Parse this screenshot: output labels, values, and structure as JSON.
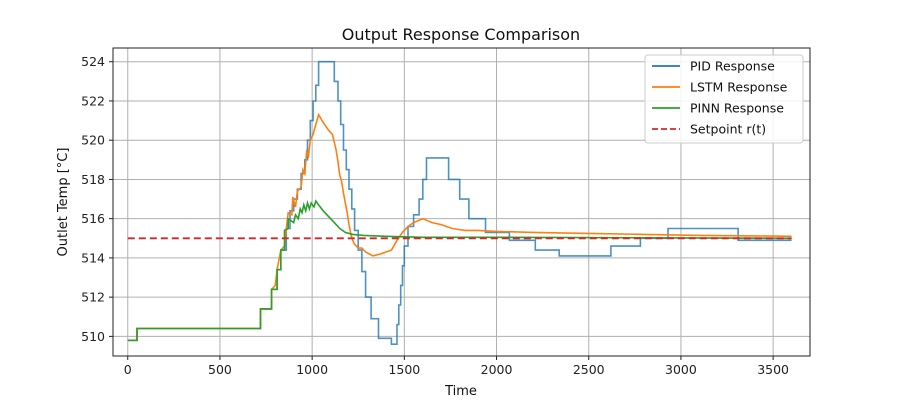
{
  "chart_data": {
    "type": "line",
    "title": "Output Response Comparison",
    "xlabel": "Time",
    "ylabel": "Outlet Temp [°C]",
    "xlim": [
      -80,
      3700
    ],
    "ylim": [
      509.0,
      524.7
    ],
    "xticks": [
      0,
      500,
      1000,
      1500,
      2000,
      2500,
      3000,
      3500
    ],
    "yticks": [
      510,
      512,
      514,
      516,
      518,
      520,
      522,
      524
    ],
    "grid": true,
    "legend_position": "top-right",
    "series": [
      {
        "name": "PID Response",
        "color": "#1f77b4",
        "step": true,
        "points": [
          [
            0,
            509.8
          ],
          [
            50,
            510.4
          ],
          [
            720,
            511.4
          ],
          [
            780,
            512.4
          ],
          [
            810,
            513.4
          ],
          [
            830,
            514.4
          ],
          [
            860,
            515.5
          ],
          [
            880,
            516.4
          ],
          [
            900,
            517.0
          ],
          [
            920,
            517.5
          ],
          [
            940,
            518.3
          ],
          [
            960,
            519.0
          ],
          [
            975,
            520.0
          ],
          [
            990,
            521.0
          ],
          [
            1005,
            522.0
          ],
          [
            1020,
            522.8
          ],
          [
            1035,
            524.0
          ],
          [
            1120,
            523.0
          ],
          [
            1140,
            522.0
          ],
          [
            1155,
            520.8
          ],
          [
            1170,
            519.5
          ],
          [
            1185,
            518.5
          ],
          [
            1200,
            517.5
          ],
          [
            1215,
            516.5
          ],
          [
            1230,
            515.4
          ],
          [
            1250,
            514.4
          ],
          [
            1270,
            513.3
          ],
          [
            1290,
            512.0
          ],
          [
            1320,
            510.9
          ],
          [
            1360,
            509.9
          ],
          [
            1430,
            509.6
          ],
          [
            1460,
            510.6
          ],
          [
            1470,
            511.6
          ],
          [
            1480,
            512.6
          ],
          [
            1490,
            513.6
          ],
          [
            1500,
            514.6
          ],
          [
            1520,
            515.6
          ],
          [
            1550,
            516.2
          ],
          [
            1580,
            517.0
          ],
          [
            1600,
            518.0
          ],
          [
            1620,
            519.1
          ],
          [
            1740,
            518.0
          ],
          [
            1800,
            517.0
          ],
          [
            1850,
            516.0
          ],
          [
            1940,
            515.3
          ],
          [
            2070,
            514.9
          ],
          [
            2210,
            514.4
          ],
          [
            2340,
            514.1
          ],
          [
            2620,
            514.6
          ],
          [
            2780,
            515.0
          ],
          [
            2930,
            515.5
          ],
          [
            3310,
            514.9
          ],
          [
            3600,
            514.9
          ]
        ]
      },
      {
        "name": "LSTM Response",
        "color": "#ff7f0e",
        "step": false,
        "points": [
          [
            0,
            509.8
          ],
          [
            50,
            509.8
          ],
          [
            50,
            510.4
          ],
          [
            720,
            510.4
          ],
          [
            720,
            511.4
          ],
          [
            780,
            511.4
          ],
          [
            780,
            512.4
          ],
          [
            800,
            512.6
          ],
          [
            810,
            513.4
          ],
          [
            830,
            514.4
          ],
          [
            850,
            514.6
          ],
          [
            860,
            515.5
          ],
          [
            870,
            516.3
          ],
          [
            890,
            516.2
          ],
          [
            895,
            517.1
          ],
          [
            910,
            516.6
          ],
          [
            920,
            517.4
          ],
          [
            940,
            517.6
          ],
          [
            950,
            518.5
          ],
          [
            960,
            518.3
          ],
          [
            970,
            519.4
          ],
          [
            980,
            519.2
          ],
          [
            990,
            520.0
          ],
          [
            1005,
            520.3
          ],
          [
            1020,
            520.8
          ],
          [
            1035,
            521.3
          ],
          [
            1060,
            520.9
          ],
          [
            1090,
            520.5
          ],
          [
            1110,
            520.3
          ],
          [
            1130,
            519.5
          ],
          [
            1140,
            518.9
          ],
          [
            1150,
            518.2
          ],
          [
            1160,
            517.9
          ],
          [
            1170,
            517.3
          ],
          [
            1180,
            516.8
          ],
          [
            1190,
            516.3
          ],
          [
            1200,
            515.7
          ],
          [
            1210,
            515.2
          ],
          [
            1220,
            514.9
          ],
          [
            1230,
            514.7
          ],
          [
            1250,
            514.5
          ],
          [
            1270,
            514.5
          ],
          [
            1290,
            514.3
          ],
          [
            1330,
            514.1
          ],
          [
            1370,
            514.2
          ],
          [
            1400,
            514.3
          ],
          [
            1430,
            514.4
          ],
          [
            1460,
            514.9
          ],
          [
            1490,
            515.3
          ],
          [
            1520,
            515.6
          ],
          [
            1550,
            515.8
          ],
          [
            1600,
            516.0
          ],
          [
            1650,
            515.8
          ],
          [
            1700,
            515.7
          ],
          [
            1760,
            515.5
          ],
          [
            1830,
            515.4
          ],
          [
            1900,
            515.4
          ],
          [
            2000,
            515.35
          ],
          [
            2200,
            515.3
          ],
          [
            2500,
            515.25
          ],
          [
            2800,
            515.2
          ],
          [
            3100,
            515.15
          ],
          [
            3400,
            515.12
          ],
          [
            3600,
            515.1
          ]
        ]
      },
      {
        "name": "PINN Response",
        "color": "#2ca02c",
        "step": false,
        "points": [
          [
            0,
            509.8
          ],
          [
            50,
            509.8
          ],
          [
            50,
            510.4
          ],
          [
            720,
            510.4
          ],
          [
            720,
            511.4
          ],
          [
            780,
            511.4
          ],
          [
            780,
            512.4
          ],
          [
            810,
            512.4
          ],
          [
            810,
            513.4
          ],
          [
            830,
            513.4
          ],
          [
            830,
            514.4
          ],
          [
            850,
            514.4
          ],
          [
            850,
            515.4
          ],
          [
            870,
            515.5
          ],
          [
            870,
            516.0
          ],
          [
            900,
            515.8
          ],
          [
            910,
            516.2
          ],
          [
            925,
            516.0
          ],
          [
            935,
            516.5
          ],
          [
            945,
            516.3
          ],
          [
            955,
            516.7
          ],
          [
            965,
            516.4
          ],
          [
            975,
            516.8
          ],
          [
            985,
            516.5
          ],
          [
            995,
            516.8
          ],
          [
            1010,
            516.6
          ],
          [
            1020,
            516.9
          ],
          [
            1035,
            516.7
          ],
          [
            1060,
            516.4
          ],
          [
            1090,
            516.1
          ],
          [
            1120,
            515.8
          ],
          [
            1150,
            515.5
          ],
          [
            1180,
            515.3
          ],
          [
            1220,
            515.2
          ],
          [
            1280,
            515.15
          ],
          [
            1400,
            515.1
          ],
          [
            1600,
            515.05
          ],
          [
            2000,
            515.05
          ],
          [
            3000,
            515.02
          ],
          [
            3600,
            515.0
          ]
        ]
      },
      {
        "name": "Setpoint r(t)",
        "color": "#d62728",
        "dashed": true,
        "points": [
          [
            0,
            515
          ],
          [
            3600,
            515
          ]
        ]
      }
    ]
  }
}
